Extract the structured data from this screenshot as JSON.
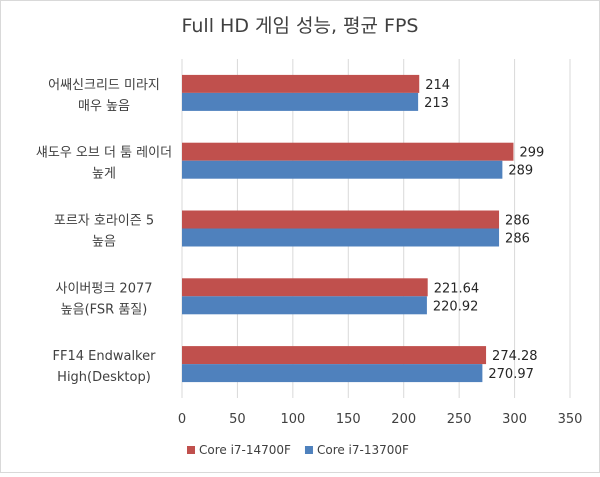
{
  "chart_data": {
    "type": "bar",
    "orientation": "horizontal",
    "title": "Full HD 게임 성능, 평균 FPS",
    "categories": [
      [
        "어쌔신크리드 미라지",
        "매우 높음"
      ],
      [
        "섀도우 오브 더 툼 레이더",
        "높게"
      ],
      [
        "포르자 호라이즌 5",
        "높음"
      ],
      [
        "사이버펑크 2077",
        "높음(FSR 품질)"
      ],
      [
        "FF14 Endwalker",
        "High(Desktop)"
      ]
    ],
    "series": [
      {
        "name": "Core i7-14700F",
        "color": "#c0504d",
        "values": [
          214,
          299,
          286,
          221.64,
          274.28
        ],
        "labels": [
          "214",
          "299",
          "286",
          "221.64",
          "274.28"
        ]
      },
      {
        "name": "Core i7-13700F",
        "color": "#4f81bd",
        "values": [
          213,
          289,
          286,
          220.92,
          270.97
        ],
        "labels": [
          "213",
          "289",
          "286",
          "220.92",
          "270.97"
        ]
      }
    ],
    "xlim": [
      0,
      350
    ],
    "xticks": [
      "0",
      "50",
      "100",
      "150",
      "200",
      "250",
      "300",
      "350"
    ],
    "grid": true,
    "legend_position": "bottom"
  }
}
